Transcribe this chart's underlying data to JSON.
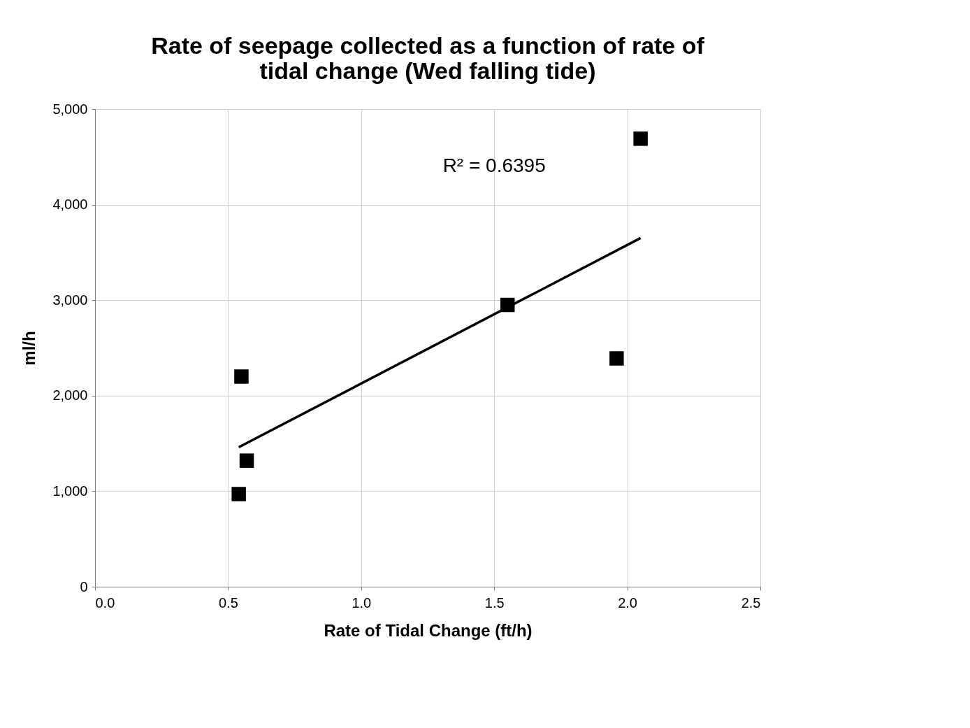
{
  "chart_data": {
    "type": "scatter",
    "title": [
      "Rate of seepage collected as a function of rate of",
      "tidal change (Wed falling tide)"
    ],
    "xlabel": "Rate of Tidal Change (ft/h)",
    "ylabel": "ml/h",
    "xlim": [
      0,
      2.5
    ],
    "xticks": [
      {
        "value": 0,
        "label": "0.0"
      },
      {
        "value": 0.5,
        "label": "0.5"
      },
      {
        "value": 1,
        "label": "1.0"
      },
      {
        "value": 1.5,
        "label": "1.5"
      },
      {
        "value": 2,
        "label": "2.0"
      },
      {
        "value": 2.5,
        "label": "2.5"
      }
    ],
    "ylim": [
      0,
      5000
    ],
    "yticks": [
      {
        "value": 0,
        "label": "0"
      },
      {
        "value": 1000,
        "label": "1,000"
      },
      {
        "value": 2000,
        "label": "2,000"
      },
      {
        "value": 3000,
        "label": "3,000"
      },
      {
        "value": 4000,
        "label": "4,000"
      },
      {
        "value": 5000,
        "label": "5,000"
      }
    ],
    "grid": true,
    "series": [
      {
        "type": "scatter",
        "color": "#000000",
        "marker": "square",
        "x": [
          0.54,
          0.55,
          0.57,
          1.55,
          1.96,
          2.05
        ],
        "values": [
          970,
          2200,
          1320,
          2950,
          2390,
          4690
        ]
      },
      {
        "type": "line",
        "color": "#000000",
        "marker": "none",
        "line_style": "solid",
        "x": [
          0.54,
          2.05
        ],
        "values": [
          1460,
          3650
        ]
      }
    ],
    "annotations": [
      "R² = 0.6395"
    ]
  }
}
